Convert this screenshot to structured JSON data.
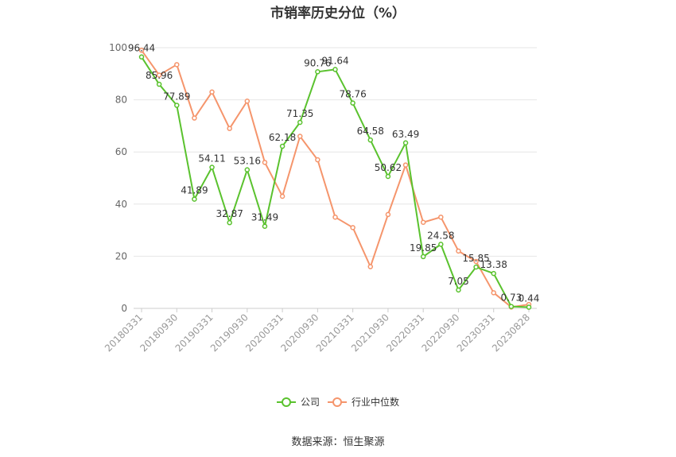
{
  "chart_data": {
    "type": "line",
    "title": "市销率历史分位（%）",
    "x": [
      "20180331",
      "20180630",
      "20180930",
      "20181231",
      "20190331",
      "20190630",
      "20190930",
      "20191231",
      "20200331",
      "20200630",
      "20200930",
      "20201231",
      "20210331",
      "20210630",
      "20210930",
      "20211231",
      "20220331",
      "20220630",
      "20220930",
      "20221231",
      "20230331",
      "20230630",
      "20230828"
    ],
    "x_tick_labels": [
      "20180331",
      "20180930",
      "20190331",
      "20190930",
      "20200331",
      "20200930",
      "20210331",
      "20210930",
      "20220331",
      "20220930",
      "20230331",
      "20230828"
    ],
    "ylim": [
      0,
      100
    ],
    "yticks": [
      0,
      20,
      40,
      60,
      80,
      100
    ],
    "grid": true,
    "legend_position": "bottom",
    "series": [
      {
        "name": "公司",
        "color": "#5ac22e",
        "values": [
          96.44,
          85.96,
          77.89,
          41.89,
          54.11,
          32.87,
          53.16,
          31.49,
          62.18,
          71.35,
          90.76,
          91.64,
          78.76,
          64.58,
          50.62,
          63.49,
          19.85,
          24.58,
          7.05,
          15.85,
          13.38,
          0.73,
          0.44
        ],
        "labels": [
          "96.44",
          "85.96",
          "77.89",
          "41.89",
          "54.11",
          "32.87",
          "53.16",
          "31.49",
          "62.18",
          "71.35",
          "90.76",
          "91.64",
          "78.76",
          "64.58",
          "50.62",
          "63.49",
          "19.85",
          "24.58",
          "7.05",
          "15.85",
          "13.38",
          "0.73",
          "0.44"
        ]
      },
      {
        "name": "行业中位数",
        "color": "#f5956c",
        "values": [
          99,
          89.5,
          93.5,
          73,
          83,
          69,
          79.5,
          56,
          43,
          66,
          57,
          35,
          31,
          16,
          36,
          55,
          33,
          35,
          22,
          18,
          6,
          0.5,
          1.5
        ]
      }
    ]
  },
  "source": "数据来源：恒生聚源"
}
